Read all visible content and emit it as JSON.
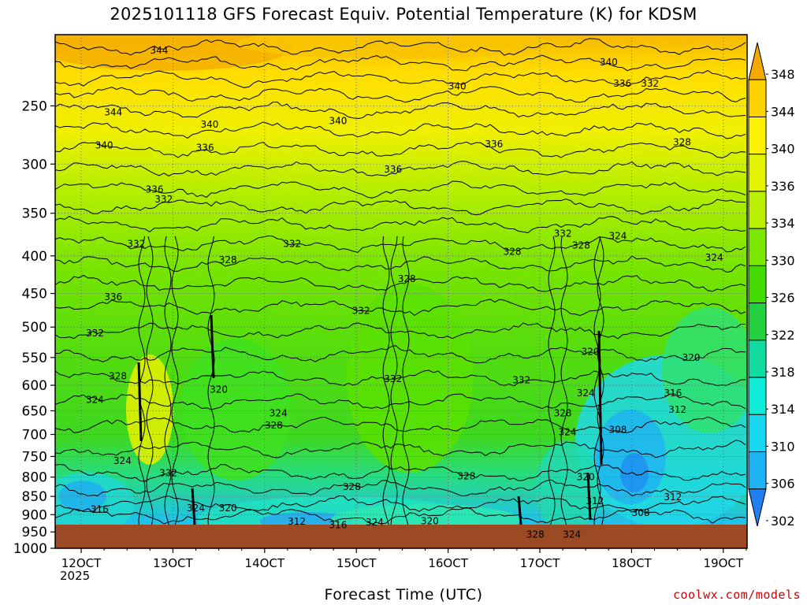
{
  "title": "2025101118 GFS Forecast Equiv. Potential Temperature (K) for KDSM",
  "xlabel": "Forecast Time (UTC)",
  "year_label": "2025",
  "credit": "coolwx.com/models",
  "chart_data": {
    "type": "heatmap",
    "title": "2025101118 GFS Forecast Equiv. Potential Temperature (K) for KDSM",
    "xlabel": "Forecast Time (UTC)",
    "ylabel": "",
    "y_ticks": [
      250,
      300,
      350,
      400,
      450,
      500,
      550,
      600,
      650,
      700,
      750,
      800,
      850,
      900,
      950,
      1000
    ],
    "x_ticks": [
      "12OCT",
      "13OCT",
      "14OCT",
      "15OCT",
      "16OCT",
      "17OCT",
      "18OCT",
      "19OCT"
    ],
    "ylim": [
      200,
      1000
    ],
    "y_scale": "log-pressure",
    "colorbar": {
      "levels": [
        348,
        344,
        340,
        336,
        334,
        330,
        326,
        322,
        318,
        314,
        310,
        306,
        302
      ],
      "colors": [
        "#f4a900",
        "#ffd200",
        "#fff200",
        "#e2f200",
        "#b8f000",
        "#7ce800",
        "#44dc00",
        "#22d040",
        "#10dca0",
        "#10ecd8",
        "#18d8f0",
        "#20b4f4",
        "#2080f0"
      ]
    },
    "contour_labels": [
      {
        "text": "344",
        "x": "12OCT+0.85",
        "p": 210
      },
      {
        "text": "344",
        "x": "12OCT+0.35",
        "p": 255
      },
      {
        "text": "340",
        "x": "12OCT+0.25",
        "p": 283
      },
      {
        "text": "336",
        "x": "12OCT+0.35",
        "p": 455
      },
      {
        "text": "332",
        "x": "12OCT+0.15",
        "p": 510
      },
      {
        "text": "328",
        "x": "12OCT+0.4",
        "p": 583
      },
      {
        "text": "324",
        "x": "12OCT+0.15",
        "p": 628
      },
      {
        "text": "324",
        "x": "12OCT+0.45",
        "p": 760
      },
      {
        "text": "316",
        "x": "12OCT+0.2",
        "p": 885
      },
      {
        "text": "332",
        "x": "12OCT+0.6",
        "p": 385
      },
      {
        "text": "336",
        "x": "12OCT+0.8",
        "p": 325
      },
      {
        "text": "332",
        "x": "12OCT+0.9",
        "p": 335
      },
      {
        "text": "332",
        "x": "12OCT+0.95",
        "p": 790
      },
      {
        "text": "340",
        "x": "13OCT+0.4",
        "p": 265
      },
      {
        "text": "336",
        "x": "13OCT+0.35",
        "p": 285
      },
      {
        "text": "336",
        "x": "14OCT+1.4",
        "p": 305
      },
      {
        "text": "340",
        "x": "15OCT-0.2",
        "p": 262
      },
      {
        "text": "340",
        "x": "16OCT+0.1",
        "p": 235
      },
      {
        "text": "336",
        "x": "16OCT+0.5",
        "p": 282
      },
      {
        "text": "332",
        "x": "13OCT+1.3",
        "p": 385
      },
      {
        "text": "328",
        "x": "13OCT+0.6",
        "p": 405
      },
      {
        "text": "328",
        "x": "15OCT+0.55",
        "p": 430
      },
      {
        "text": "332",
        "x": "15OCT+0.05",
        "p": 475
      },
      {
        "text": "328",
        "x": "16OCT+0.7",
        "p": 395
      },
      {
        "text": "332",
        "x": "15OCT+0.4",
        "p": 588
      },
      {
        "text": "332",
        "x": "16OCT+0.8",
        "p": 590
      },
      {
        "text": "320",
        "x": "13OCT+0.5",
        "p": 608
      },
      {
        "text": "324",
        "x": "14OCT+0.15",
        "p": 655
      },
      {
        "text": "328",
        "x": "14OCT+0.1",
        "p": 680
      },
      {
        "text": "324",
        "x": "13OCT+0.25",
        "p": 882
      },
      {
        "text": "320",
        "x": "13OCT+0.6",
        "p": 882
      },
      {
        "text": "328",
        "x": "15OCT-0.05",
        "p": 825
      },
      {
        "text": "312",
        "x": "14OCT+0.35",
        "p": 920
      },
      {
        "text": "316",
        "x": "15OCT-0.2",
        "p": 930
      },
      {
        "text": "324",
        "x": "15OCT+0.2",
        "p": 922
      },
      {
        "text": "320",
        "x": "15OCT+0.8",
        "p": 918
      },
      {
        "text": "328",
        "x": "16OCT+0.2",
        "p": 798
      },
      {
        "text": "328",
        "x": "17OCT-0.05",
        "p": 958
      },
      {
        "text": "324",
        "x": "17OCT+0.35",
        "p": 958
      },
      {
        "text": "332",
        "x": "17OCT+0.25",
        "p": 373
      },
      {
        "text": "328",
        "x": "17OCT+0.45",
        "p": 387
      },
      {
        "text": "324",
        "x": "18OCT-0.15",
        "p": 376
      },
      {
        "text": "328",
        "x": "17OCT+0.25",
        "p": 655
      },
      {
        "text": "324",
        "x": "17OCT+0.3",
        "p": 695
      },
      {
        "text": "324",
        "x": "17OCT+0.5",
        "p": 615
      },
      {
        "text": "320",
        "x": "17OCT+0.55",
        "p": 540
      },
      {
        "text": "320",
        "x": "17OCT+0.5",
        "p": 800
      },
      {
        "text": "312",
        "x": "17OCT+0.6",
        "p": 862
      },
      {
        "text": "308",
        "x": "18OCT-0.15",
        "p": 690
      },
      {
        "text": "308",
        "x": "18OCT+0.1",
        "p": 895
      },
      {
        "text": "312",
        "x": "18OCT+0.45",
        "p": 852
      },
      {
        "text": "312",
        "x": "18OCT+0.5",
        "p": 648
      },
      {
        "text": "316",
        "x": "18OCT+0.45",
        "p": 615
      },
      {
        "text": "320",
        "x": "18OCT+0.65",
        "p": 550
      },
      {
        "text": "324",
        "x": "19OCT-0.1",
        "p": 402
      },
      {
        "text": "328",
        "x": "18OCT+0.55",
        "p": 280
      },
      {
        "text": "340",
        "x": "18OCT-0.25",
        "p": 218
      },
      {
        "text": "336",
        "x": "18OCT-0.1",
        "p": 233
      },
      {
        "text": "332",
        "x": "18OCT+0.2",
        "p": 233
      }
    ]
  }
}
